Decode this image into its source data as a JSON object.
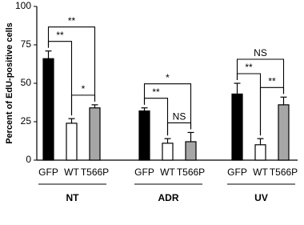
{
  "chart_data": {
    "type": "grouped-bar",
    "y_label": "Percent of EdU-positive cells",
    "ylim": [
      0,
      100
    ],
    "yticks": [
      0,
      25,
      50,
      75,
      100
    ],
    "colors": [
      "#000000",
      "#ffffff",
      "#a6a6a6"
    ],
    "groups": [
      {
        "name": "NT",
        "categories": [
          "GFP",
          "WT",
          "T566P"
        ],
        "values": [
          66,
          24,
          34
        ],
        "errors": [
          5,
          3,
          2
        ]
      },
      {
        "name": "ADR",
        "categories": [
          "GFP",
          "WT",
          "T566P"
        ],
        "values": [
          32,
          11,
          12
        ],
        "errors": [
          2,
          3,
          6
        ]
      },
      {
        "name": "UV",
        "categories": [
          "GFP",
          "WT",
          "T566P"
        ],
        "values": [
          43,
          10,
          36
        ],
        "errors": [
          7,
          4,
          5
        ]
      }
    ],
    "significance": [
      {
        "group": 0,
        "from": 0,
        "to": 1,
        "label": "**"
      },
      {
        "group": 0,
        "from": 0,
        "to": 2,
        "label": "**"
      },
      {
        "group": 0,
        "from": 1,
        "to": 2,
        "label": "*"
      },
      {
        "group": 1,
        "from": 0,
        "to": 1,
        "label": "**"
      },
      {
        "group": 1,
        "from": 0,
        "to": 2,
        "label": "*"
      },
      {
        "group": 1,
        "from": 1,
        "to": 2,
        "label": "NS"
      },
      {
        "group": 2,
        "from": 0,
        "to": 1,
        "label": "**"
      },
      {
        "group": 2,
        "from": 0,
        "to": 2,
        "label": "NS"
      },
      {
        "group": 2,
        "from": 1,
        "to": 2,
        "label": "**"
      }
    ]
  }
}
